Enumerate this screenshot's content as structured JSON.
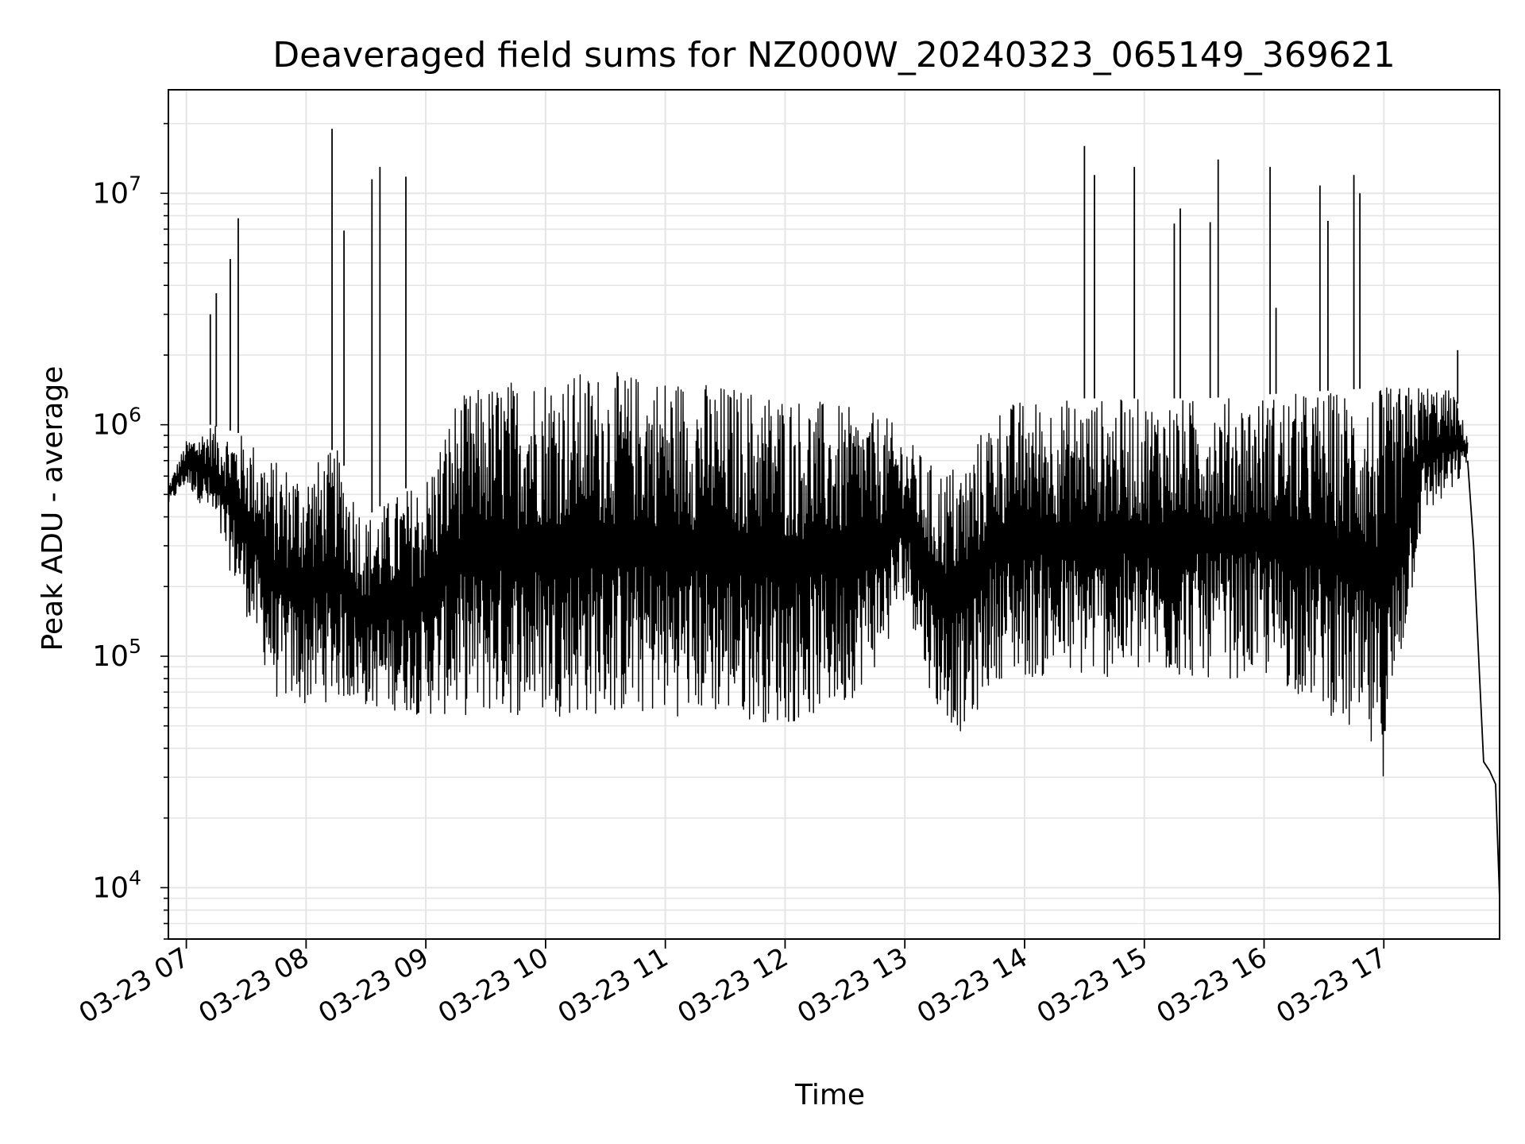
{
  "chart_data": {
    "type": "line",
    "title": "Deaveraged field sums for NZ000W_20240323_065149_369621",
    "xlabel": "Time",
    "ylabel": "Peak ADU - average",
    "yscale": "log",
    "ylim": [
      6000,
      28000000
    ],
    "xlim": [
      "03-23 06:51",
      "03-23 17:58"
    ],
    "grid": "on (major and minor)",
    "series_color": "#000000",
    "grid_color": "#e5e5e5",
    "x_ticks": [
      "03-23 07",
      "03-23 08",
      "03-23 09",
      "03-23 10",
      "03-23 11",
      "03-23 12",
      "03-23 13",
      "03-23 14",
      "03-23 15",
      "03-23 16",
      "03-23 17"
    ],
    "y_ticks": [
      {
        "value": 10000,
        "base": "10",
        "exp": "4"
      },
      {
        "value": 100000,
        "base": "10",
        "exp": "5"
      },
      {
        "value": 1000000,
        "base": "10",
        "exp": "6"
      },
      {
        "value": 10000000,
        "base": "10",
        "exp": "7"
      }
    ],
    "series": [
      {
        "band": [
          {
            "x": "06:51",
            "low": 450000,
            "high": 550000
          },
          {
            "x": "07:00",
            "low": 550000,
            "high": 850000
          },
          {
            "x": "07:12",
            "low": 400000,
            "high": 1000000
          },
          {
            "x": "07:30",
            "low": 150000,
            "high": 900000
          },
          {
            "x": "07:45",
            "low": 65000,
            "high": 700000
          },
          {
            "x": "08:00",
            "low": 60000,
            "high": 650000
          },
          {
            "x": "08:15",
            "low": 65000,
            "high": 800000
          },
          {
            "x": "08:30",
            "low": 60000,
            "high": 400000
          },
          {
            "x": "08:45",
            "low": 58000,
            "high": 500000
          },
          {
            "x": "09:00",
            "low": 55000,
            "high": 600000
          },
          {
            "x": "09:15",
            "low": 55000,
            "high": 1300000
          },
          {
            "x": "09:30",
            "low": 55000,
            "high": 1500000
          },
          {
            "x": "09:45",
            "low": 55000,
            "high": 1600000
          },
          {
            "x": "10:00",
            "low": 55000,
            "high": 1700000
          },
          {
            "x": "10:30",
            "low": 55000,
            "high": 1700000
          },
          {
            "x": "11:00",
            "low": 55000,
            "high": 1650000
          },
          {
            "x": "11:30",
            "low": 55000,
            "high": 1500000
          },
          {
            "x": "12:00",
            "low": 50000,
            "high": 1400000
          },
          {
            "x": "12:30",
            "low": 60000,
            "high": 1200000
          },
          {
            "x": "12:50",
            "low": 100000,
            "high": 1100000
          },
          {
            "x": "13:00",
            "low": 180000,
            "high": 900000
          },
          {
            "x": "13:15",
            "low": 60000,
            "high": 650000
          },
          {
            "x": "13:30",
            "low": 45000,
            "high": 700000
          },
          {
            "x": "13:45",
            "low": 80000,
            "high": 1200000
          },
          {
            "x": "14:00",
            "low": 80000,
            "high": 1300000
          },
          {
            "x": "14:30",
            "low": 80000,
            "high": 1300000
          },
          {
            "x": "15:00",
            "low": 80000,
            "high": 1300000
          },
          {
            "x": "15:30",
            "low": 80000,
            "high": 1300000
          },
          {
            "x": "16:00",
            "low": 80000,
            "high": 1350000
          },
          {
            "x": "16:30",
            "low": 60000,
            "high": 1400000
          },
          {
            "x": "17:00",
            "low": 30000,
            "high": 1450000
          },
          {
            "x": "17:20",
            "low": 400000,
            "high": 1500000
          },
          {
            "x": "17:35",
            "low": 500000,
            "high": 1400000
          },
          {
            "x": "17:42",
            "low": 700000,
            "high": 900000
          }
        ],
        "tail": [
          {
            "x": "17:42",
            "y": 700000
          },
          {
            "x": "17:45",
            "y": 300000
          },
          {
            "x": "17:48",
            "y": 80000
          },
          {
            "x": "17:50",
            "y": 35000
          },
          {
            "x": "17:53",
            "y": 32000
          },
          {
            "x": "17:56",
            "y": 28000
          },
          {
            "x": "17:58",
            "y": 9000
          }
        ],
        "spikes": [
          {
            "x": "07:12",
            "y": 3000000
          },
          {
            "x": "07:15",
            "y": 3700000
          },
          {
            "x": "07:22",
            "y": 5200000
          },
          {
            "x": "07:26",
            "y": 7800000
          },
          {
            "x": "08:13",
            "y": 19000000
          },
          {
            "x": "08:19",
            "y": 6900000
          },
          {
            "x": "08:33",
            "y": 11500000
          },
          {
            "x": "08:37",
            "y": 13000000
          },
          {
            "x": "08:50",
            "y": 11800000
          },
          {
            "x": "14:30",
            "y": 16000000
          },
          {
            "x": "14:35",
            "y": 12000000
          },
          {
            "x": "14:55",
            "y": 13000000
          },
          {
            "x": "15:15",
            "y": 7400000
          },
          {
            "x": "15:18",
            "y": 8600000
          },
          {
            "x": "15:33",
            "y": 7500000
          },
          {
            "x": "15:37",
            "y": 14000000
          },
          {
            "x": "16:03",
            "y": 13000000
          },
          {
            "x": "16:06",
            "y": 3200000
          },
          {
            "x": "16:28",
            "y": 10800000
          },
          {
            "x": "16:32",
            "y": 7600000
          },
          {
            "x": "16:45",
            "y": 12000000
          },
          {
            "x": "16:48",
            "y": 10000000
          },
          {
            "x": "17:37",
            "y": 2100000
          }
        ]
      }
    ]
  }
}
